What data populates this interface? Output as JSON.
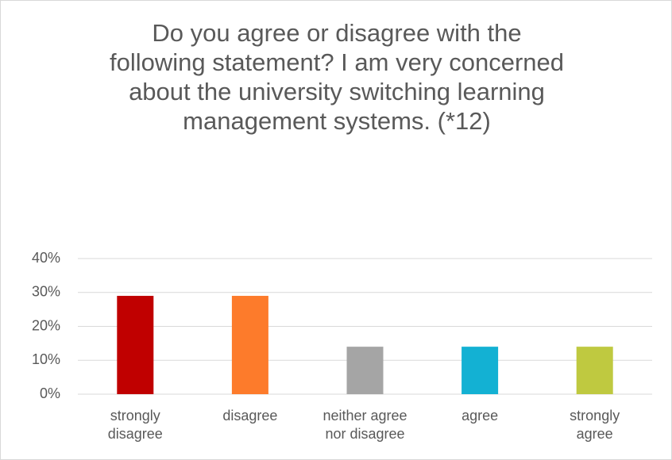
{
  "chart_data": {
    "type": "bar",
    "title": "Do you agree or disagree with the following statement? I am very concerned about the university switching learning management systems. (*12)",
    "categories": [
      "strongly disagree",
      "disagree",
      "neither agree nor disagree",
      "agree",
      "strongly agree"
    ],
    "values": [
      29,
      29,
      14,
      14,
      14
    ],
    "colors": [
      "#c00000",
      "#fd7b2b",
      "#a5a5a5",
      "#13b1d3",
      "#bfc940"
    ],
    "ylim": [
      0,
      40
    ],
    "yticks": [
      {
        "value": 0,
        "label": "0%"
      },
      {
        "value": 10,
        "label": "10%"
      },
      {
        "value": 20,
        "label": "20%"
      },
      {
        "value": 30,
        "label": "30%"
      },
      {
        "value": 40,
        "label": "40%"
      }
    ],
    "grid": true
  }
}
